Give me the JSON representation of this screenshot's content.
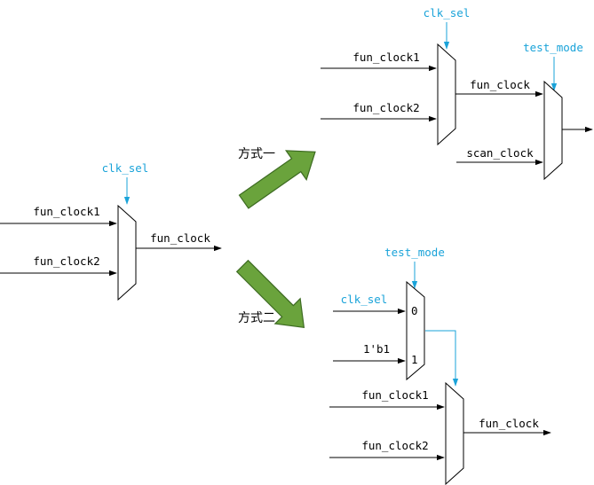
{
  "colors": {
    "control": "#1aa3d9",
    "arrow_fill": "#6aa33c",
    "arrow_stroke": "#3d6b22",
    "wire": "#000000"
  },
  "left": {
    "ctrl": "clk_sel",
    "in1": "fun_clock1",
    "in2": "fun_clock2",
    "out": "fun_clock"
  },
  "method1": {
    "title": "方式一",
    "mux1": {
      "ctrl": "clk_sel",
      "in1": "fun_clock1",
      "in2": "fun_clock2"
    },
    "mux2": {
      "ctrl": "test_mode",
      "in1": "fun_clock",
      "in2": "scan_clock"
    }
  },
  "method2": {
    "title": "方式二",
    "mux1": {
      "ctrl": "test_mode",
      "in0": "clk_sel",
      "in1": "1'b1",
      "port0": "0",
      "port1": "1"
    },
    "mux2": {
      "in1": "fun_clock1",
      "in2": "fun_clock2",
      "out": "fun_clock"
    }
  }
}
